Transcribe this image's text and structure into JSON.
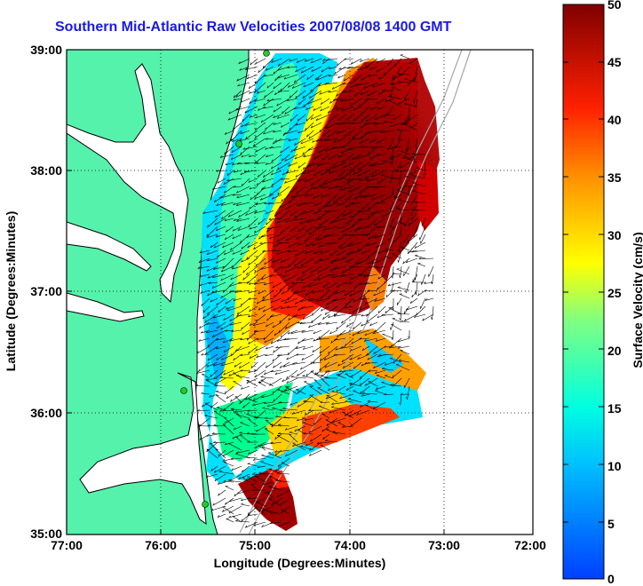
{
  "title": "Southern Mid-Atlantic Raw Velocities 2007/08/08 1400 GMT",
  "axes": {
    "xlabel": "Longitude (Degrees:Minutes)",
    "ylabel": "Latitude (Degrees:Minutes)",
    "x_ticks": [
      "77:00",
      "76:00",
      "75:00",
      "74:00",
      "73:00",
      "72:00"
    ],
    "y_ticks": [
      "39:00",
      "38:00",
      "37:00",
      "36:00",
      "35:00"
    ],
    "x_range_deg": [
      -77,
      -72
    ],
    "y_range_deg": [
      35,
      39
    ],
    "grid": "dotted"
  },
  "colorbar": {
    "label": "Surface Velocity (cm/s)",
    "ticks": [
      "50",
      "45",
      "40",
      "35",
      "30",
      "25",
      "20",
      "15",
      "10",
      "5",
      "0"
    ],
    "range": [
      0,
      50
    ],
    "colormap": "jet"
  },
  "colors": {
    "land": "#55f2ab",
    "coastline": "#000000",
    "water": "#ffffff",
    "arrows": "#000000",
    "station_markers": "#22cc22",
    "bathymetry": "#a6a6a6"
  }
}
